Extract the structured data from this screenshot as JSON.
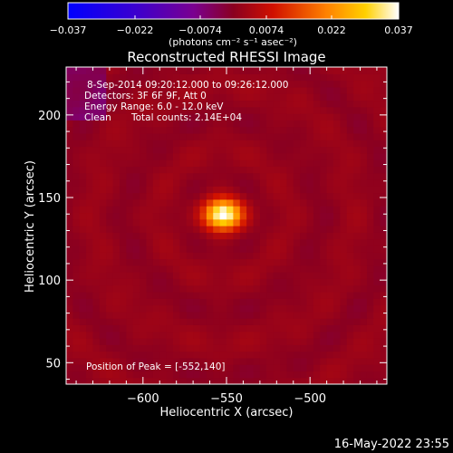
{
  "chart_data": {
    "type": "heatmap",
    "title": "Reconstructed RHESSI Image",
    "xlabel": "Heliocentric X (arcsec)",
    "ylabel": "Heliocentric Y (arcsec)",
    "xlim": [
      -646,
      -454
    ],
    "ylim": [
      37,
      229
    ],
    "x_ticks": [
      -600,
      -550,
      -500
    ],
    "x_tick_labels": [
      "−600",
      "−550",
      "−500"
    ],
    "y_ticks": [
      50,
      100,
      150,
      200
    ],
    "y_tick_labels": [
      "50",
      "100",
      "150",
      "200"
    ],
    "colorbar": {
      "min": -0.037,
      "max": 0.037,
      "ticks": [
        -0.037,
        -0.022,
        -0.0074,
        0.0074,
        0.022,
        0.037
      ],
      "tick_labels": [
        "−0.037",
        "−0.022",
        "−0.0074",
        "0.0074",
        "0.022",
        "0.037"
      ],
      "unit_label": "(photons cm⁻² s⁻¹ asec⁻²)",
      "colormap": "rainbow-style: blue → purple → red → orange → yellow → white"
    },
    "annotations": {
      "time_range": "8-Sep-2014 09:20:12.000 to 09:26:12.000",
      "detectors": "Detectors: 3F 6F 9F, Att 0",
      "energy_range": "Energy Range: 6.0 - 12.0 keV",
      "algorithm": "Clean",
      "total_counts": "Total counts: 2.14E+04",
      "peak_position": "Position of Peak = [-552,140]"
    },
    "source": {
      "peak_x": -552,
      "peak_y": 140,
      "peak_value": 0.037
    },
    "grid": false
  },
  "footer": {
    "timestamp": "16-May-2022 23:55"
  },
  "colors": {
    "background": "#000000",
    "foreground": "#ffffff"
  }
}
